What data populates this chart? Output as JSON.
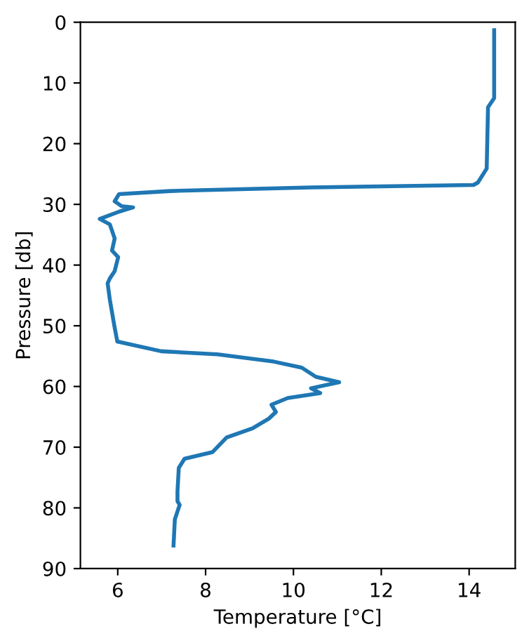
{
  "chart_data": {
    "type": "line",
    "xlabel": "Temperature [°C]",
    "ylabel": "Pressure [db]",
    "xlim": [
      5.15,
      15.05
    ],
    "xticks": [
      6,
      8,
      10,
      12,
      14
    ],
    "ylim": [
      90,
      0
    ],
    "yticks": [
      0,
      10,
      20,
      30,
      40,
      50,
      60,
      70,
      80,
      90
    ],
    "grid": false,
    "legend": false,
    "series": [
      {
        "color": "#1f77b4",
        "line_style": "solid",
        "x": [
          14.57,
          14.57,
          14.43,
          14.4,
          14.2,
          14.1,
          10.4,
          7.2,
          6.03,
          5.93,
          6.09,
          6.35,
          6.03,
          5.59,
          5.82,
          5.93,
          5.87,
          6.01,
          5.93,
          5.82,
          5.77,
          5.82,
          5.93,
          5.99,
          6.99,
          8.27,
          9.55,
          10.19,
          10.51,
          11.04,
          10.4,
          10.61,
          9.87,
          9.5,
          9.6,
          9.44,
          9.07,
          8.48,
          8.16,
          7.52,
          7.39,
          7.36,
          7.36,
          7.41,
          7.3,
          7.27
        ],
        "values": [
          1.3,
          12.5,
          14,
          24.1,
          26.4,
          26.8,
          27.2,
          27.8,
          28.3,
          29.5,
          30.3,
          30.5,
          31.2,
          32.4,
          33.3,
          35.6,
          37.6,
          38.7,
          41,
          42.2,
          43,
          45.7,
          50.3,
          52.6,
          54.2,
          54.7,
          55.9,
          56.9,
          58.4,
          59.3,
          60.3,
          61.1,
          61.9,
          63,
          64.2,
          65.3,
          66.9,
          68.4,
          70.8,
          71.9,
          73.4,
          77.3,
          78.9,
          79.5,
          81.9,
          86.2
        ]
      }
    ]
  }
}
